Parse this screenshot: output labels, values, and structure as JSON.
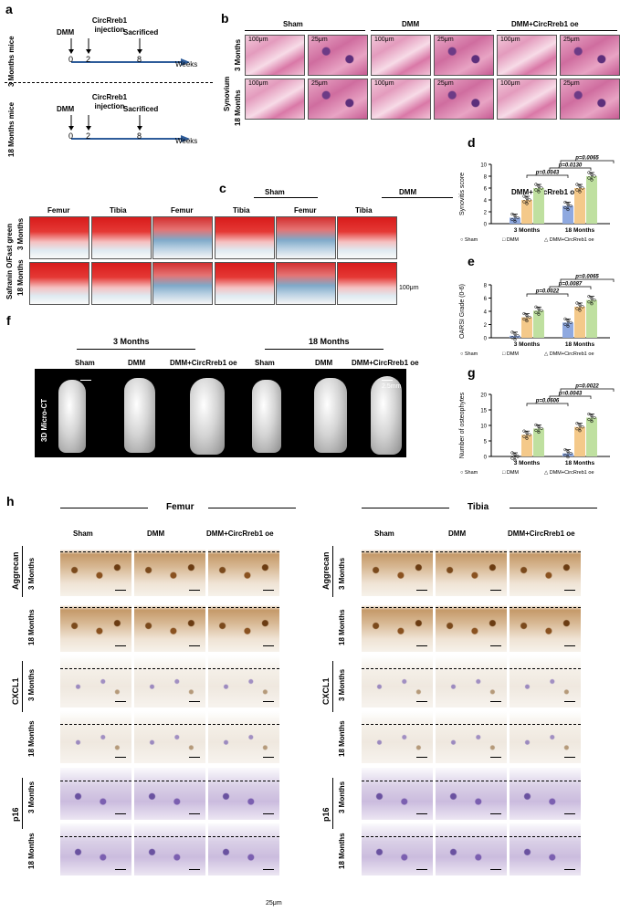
{
  "panels": {
    "a": "a",
    "b": "b",
    "c": "c",
    "d": "d",
    "e": "e",
    "f": "f",
    "g": "g",
    "h": "h"
  },
  "a": {
    "mice1": "3 Months mice",
    "mice2": "18 Months mice",
    "dmm": "DMM",
    "inj": "CircRreb1 injection",
    "sac": "Sacrificed",
    "t0": "0",
    "t2": "2",
    "t8": "8",
    "weeks": "Weeks"
  },
  "b": {
    "groups": [
      "Sham",
      "DMM",
      "DMM+CircRreb1 oe"
    ],
    "side": "Synovium",
    "row1": "3 Months",
    "row2": "18 Months",
    "s100": "100μm",
    "s25": "25μm"
  },
  "c": {
    "groups": [
      "Sham",
      "DMM",
      "DMM+CircRreb1 oe"
    ],
    "sub": [
      "Femur",
      "Tibia",
      "Femur",
      "Tibia",
      "Femur",
      "Tibia"
    ],
    "side": "Safranin O/Fast green",
    "row1": "3 Months",
    "row2": "18 Months",
    "scale": "100μm"
  },
  "f": {
    "head1": "3 Months",
    "head2": "18 Months",
    "groups": [
      "Sham",
      "DMM",
      "DMM+CircRreb1 oe",
      "Sham",
      "DMM",
      "DMM+CircRreb1 oe"
    ],
    "side": "3D Micro-CT",
    "scale": "2.5mm"
  },
  "h": {
    "femur": "Femur",
    "tibia": "Tibia",
    "groups": [
      "Sham",
      "DMM",
      "DMM+CircRreb1 oe"
    ],
    "markers": [
      "Aggrecan",
      "CXCL1",
      "p16"
    ],
    "rows": [
      "3 Months",
      "18 Months"
    ],
    "scale": "25μm"
  },
  "colors": {
    "sham": "#8fa9e0",
    "dmm": "#f4c98a",
    "oe": "#bfe0a0",
    "arrow": "#2e5c9a"
  },
  "chart_data": [
    {
      "type": "bar",
      "panel": "d",
      "ylabel": "Synovitis score",
      "ylim": [
        0,
        10
      ],
      "yticks": [
        "0",
        "2",
        "4",
        "6",
        "8",
        "10"
      ],
      "categories": [
        "3 Months",
        "18 Months"
      ],
      "series": [
        {
          "name": "Sham",
          "values": [
            1.0,
            3.0
          ]
        },
        {
          "name": "DMM",
          "values": [
            4.0,
            6.0
          ]
        },
        {
          "name": "DMM+CircRreb1 oe",
          "values": [
            6.0,
            8.0
          ]
        }
      ],
      "annotations": [
        "p=0.0043",
        "p=0.0130",
        "p=0.0065"
      ],
      "legend": "bottom"
    },
    {
      "type": "bar",
      "panel": "e",
      "ylabel": "OARSI Grade (0-6)",
      "ylim": [
        0,
        8
      ],
      "yticks": [
        "0",
        "2",
        "4",
        "6",
        "8"
      ],
      "categories": [
        "3 Months",
        "18 Months"
      ],
      "series": [
        {
          "name": "Sham",
          "values": [
            0.3,
            2.3
          ]
        },
        {
          "name": "DMM",
          "values": [
            3.1,
            4.7
          ]
        },
        {
          "name": "DMM+CircRreb1 oe",
          "values": [
            4.1,
            5.7
          ]
        }
      ],
      "annotations": [
        "p=0.0022",
        "p=0.0087",
        "p=0.0065"
      ],
      "legend": "bottom"
    },
    {
      "type": "bar",
      "panel": "g",
      "ylabel": "Number of osteophytes",
      "ylim": [
        0,
        20
      ],
      "yticks": [
        "0",
        "5",
        "10",
        "15",
        "20"
      ],
      "categories": [
        "3 Months",
        "18 Months"
      ],
      "series": [
        {
          "name": "Sham",
          "values": [
            0.0,
            1.0
          ]
        },
        {
          "name": "DMM",
          "values": [
            7.0,
            9.5
          ]
        },
        {
          "name": "DMM+CircRreb1 oe",
          "values": [
            9.0,
            12.5
          ]
        }
      ],
      "annotations": [
        "p=0.0606",
        "p=0.0043",
        "p=0.0022"
      ],
      "legend": "bottom"
    }
  ]
}
